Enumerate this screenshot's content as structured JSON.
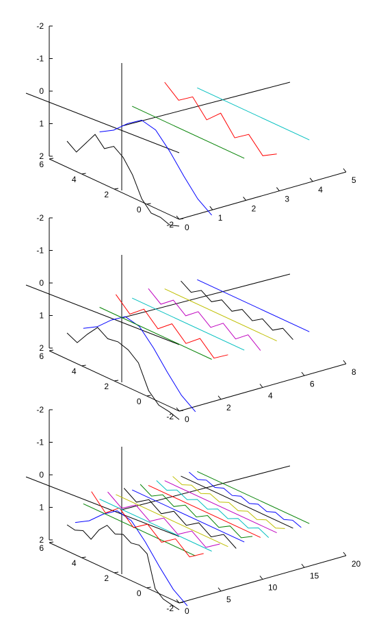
{
  "chart_data": [
    {
      "type": "line",
      "title": "",
      "zlim": [
        -2,
        2
      ],
      "ylim": [
        -2,
        6
      ],
      "xlim": [
        0,
        5
      ],
      "z_ticks": [
        "-2",
        "-1",
        "0",
        "1",
        "2"
      ],
      "y_ticks": [
        "6",
        "4",
        "2",
        "0",
        "-2"
      ],
      "x_ticks": [
        "0",
        "1",
        "2",
        "3",
        "4",
        "5"
      ],
      "grid": false,
      "series": [
        {
          "color": "#000000",
          "x_pos": 0,
          "y": [
            -1.0,
            -1.4,
            -0.6,
            0.2,
            -0.4,
            0.0,
            -0.4,
            -1.2,
            -2.4,
            -3.0,
            -3.0,
            -3.2,
            -3.0
          ]
        },
        {
          "color": "#0000ff",
          "x_pos": 1,
          "y": [
            -1.0,
            -0.5,
            0.3,
            0.9,
            0.7,
            -0.2,
            -1.3,
            -2.3,
            -2.9
          ]
        },
        {
          "color": "#008000",
          "x_pos": 2,
          "y": [
            0,
            0
          ]
        },
        {
          "color": "#ff0000",
          "x_pos": 3,
          "y": [
            0.9,
            0.2,
            0.8,
            -0.2,
            0.6,
            -0.5,
            0.1,
            -0.8,
            -0.3
          ]
        },
        {
          "color": "#00bfbf",
          "x_pos": 4,
          "y": [
            0,
            0
          ]
        }
      ]
    },
    {
      "type": "line",
      "title": "",
      "zlim": [
        -2,
        2
      ],
      "ylim": [
        -2,
        6
      ],
      "xlim": [
        0,
        8
      ],
      "z_ticks": [
        "-2",
        "-1",
        "0",
        "1",
        "2"
      ],
      "y_ticks": [
        "6",
        "4",
        "2",
        "0",
        "-2"
      ],
      "x_ticks": [
        "0",
        "2",
        "4",
        "6",
        "8"
      ],
      "grid": false,
      "series": [
        {
          "color": "#000000",
          "x_pos": 0,
          "y": [
            -1.0,
            -1.3,
            -0.5,
            0.2,
            -0.2,
            -0.1,
            -0.3,
            -0.8,
            -2.2,
            -2.8,
            -2.9,
            -3.1
          ]
        },
        {
          "color": "#0000ff",
          "x_pos": 1,
          "y": [
            -1.0,
            -0.5,
            0.3,
            0.9,
            0.7,
            -0.2,
            -1.3,
            -2.3,
            -2.9
          ]
        },
        {
          "color": "#008000",
          "x_pos": 2,
          "y": [
            0,
            0
          ]
        },
        {
          "color": "#ff0000",
          "x_pos": 3,
          "y": [
            0.5,
            -0.3,
            0.4,
            -0.4,
            0.3,
            -0.5,
            0.2,
            -0.6,
            0.0
          ]
        },
        {
          "color": "#00bfbf",
          "x_pos": 4,
          "y": [
            0,
            0
          ]
        },
        {
          "color": "#bf00bf",
          "x_pos": 5,
          "y": [
            0.3,
            -0.3,
            0.3,
            -0.3,
            0.3,
            -0.3,
            0.3,
            -0.3,
            0.3,
            -0.3
          ]
        },
        {
          "color": "#bfbf00",
          "x_pos": 6,
          "y": [
            0,
            0
          ]
        },
        {
          "color": "#000000",
          "x_pos": 7,
          "y": [
            0.2,
            -0.2,
            0.2,
            -0.2,
            0.2,
            -0.2,
            0.2,
            -0.2,
            0.2,
            -0.2,
            0.2,
            -0.2
          ]
        },
        {
          "color": "#0000ff",
          "x_pos": 8,
          "y": [
            0,
            0
          ]
        }
      ]
    },
    {
      "type": "line",
      "title": "",
      "zlim": [
        -2,
        2
      ],
      "ylim": [
        -2,
        6
      ],
      "xlim": [
        0,
        20
      ],
      "z_ticks": [
        "-2",
        "-1",
        "0",
        "1",
        "2"
      ],
      "y_ticks": [
        "6",
        "4",
        "2",
        "0",
        "-2"
      ],
      "x_ticks": [
        "0",
        "5",
        "10",
        "15",
        "20"
      ],
      "grid": false,
      "series": [
        {
          "color": "#000000",
          "x_pos": 0,
          "y": [
            -1.0,
            -1.1,
            -0.9,
            -1.2,
            -0.4,
            0.1,
            -0.2,
            0.0,
            -0.3,
            -0.2,
            -0.5,
            -2.4,
            -2.8,
            -2.9,
            -3.0
          ]
        },
        {
          "color": "#0000ff",
          "x_pos": 1,
          "y": [
            -1.0,
            -0.5,
            0.3,
            0.9,
            0.7,
            -0.2,
            -1.3,
            -2.3,
            -2.9
          ]
        },
        {
          "color": "#008000",
          "x_pos": 2,
          "y": [
            0,
            0
          ]
        },
        {
          "color": "#ff0000",
          "x_pos": 3,
          "y": [
            0.6,
            -0.3,
            0.4,
            -0.4,
            0.2,
            -0.5,
            0.1,
            -0.6,
            0.0
          ]
        },
        {
          "color": "#00bfbf",
          "x_pos": 4,
          "y": [
            0,
            0
          ]
        },
        {
          "color": "#bf00bf",
          "x_pos": 5,
          "y": [
            0.3,
            -0.3,
            0.3,
            -0.3,
            0.3,
            -0.3,
            0.3,
            -0.3,
            0.3
          ]
        },
        {
          "color": "#bfbf00",
          "x_pos": 6,
          "y": [
            0,
            0
          ]
        },
        {
          "color": "#000000",
          "x_pos": 7,
          "y": [
            0.25,
            -0.25,
            0.25,
            -0.25,
            0.25,
            -0.25,
            0.25,
            -0.25,
            0.25,
            -0.25
          ]
        },
        {
          "color": "#0000ff",
          "x_pos": 8,
          "y": [
            0,
            0
          ]
        },
        {
          "color": "#008000",
          "x_pos": 9,
          "y": [
            0.2,
            -0.2,
            0.2,
            -0.2,
            0.2,
            -0.2,
            0.2,
            -0.2,
            0.2,
            -0.2,
            0.2
          ]
        },
        {
          "color": "#ff0000",
          "x_pos": 10,
          "y": [
            0,
            0
          ]
        },
        {
          "color": "#00bfbf",
          "x_pos": 11,
          "y": [
            0.15,
            -0.15,
            0.15,
            -0.15,
            0.15,
            -0.15,
            0.15,
            -0.15,
            0.15,
            -0.15,
            0.15,
            -0.15
          ]
        },
        {
          "color": "#bf00bf",
          "x_pos": 12,
          "y": [
            0,
            0
          ]
        },
        {
          "color": "#bfbf00",
          "x_pos": 13,
          "y": [
            0.12,
            -0.12,
            0.12,
            -0.12,
            0.12,
            -0.12,
            0.12,
            -0.12,
            0.12,
            -0.12,
            0.12,
            -0.12,
            0.12
          ]
        },
        {
          "color": "#000000",
          "x_pos": 14,
          "y": [
            0,
            0
          ]
        },
        {
          "color": "#0000ff",
          "x_pos": 15,
          "y": [
            0.1,
            -0.1,
            0.1,
            -0.1,
            0.1,
            -0.1,
            0.1,
            -0.1,
            0.1,
            -0.1,
            0.1,
            -0.1,
            0.1,
            -0.1
          ]
        },
        {
          "color": "#008000",
          "x_pos": 16,
          "y": [
            0,
            0
          ]
        }
      ]
    }
  ]
}
